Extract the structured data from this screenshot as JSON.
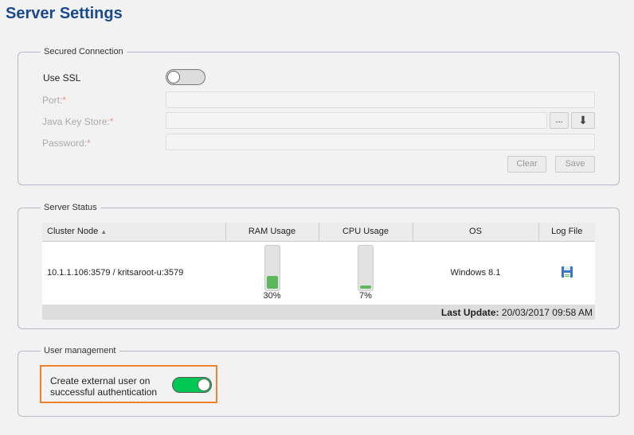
{
  "title": "Server Settings",
  "secured": {
    "legend": "Secured Connection",
    "use_ssl": "Use SSL",
    "ssl_on": false,
    "port": "Port:",
    "jks": "Java Key Store:",
    "password": "Password:",
    "req": "*",
    "browse": "...",
    "clear": "Clear",
    "save": "Save"
  },
  "status": {
    "legend": "Server Status",
    "headers": [
      "Cluster Node",
      "RAM Usage",
      "CPU Usage",
      "OS",
      "Log File"
    ],
    "row": {
      "node": "10.1.1.106:3579 / kritsaroot-u:3579",
      "ram": 30,
      "ram_label": "30%",
      "cpu": 7,
      "cpu_label": "7%",
      "os": "Windows 8.1"
    },
    "last_update_label": "Last Update:",
    "last_update": "20/03/2017 09:58 AM"
  },
  "users": {
    "legend": "User management",
    "create_external": "Create external user on successful authentication",
    "create_on": true,
    "accent": "#00c853",
    "highlight": "#f0822a"
  }
}
